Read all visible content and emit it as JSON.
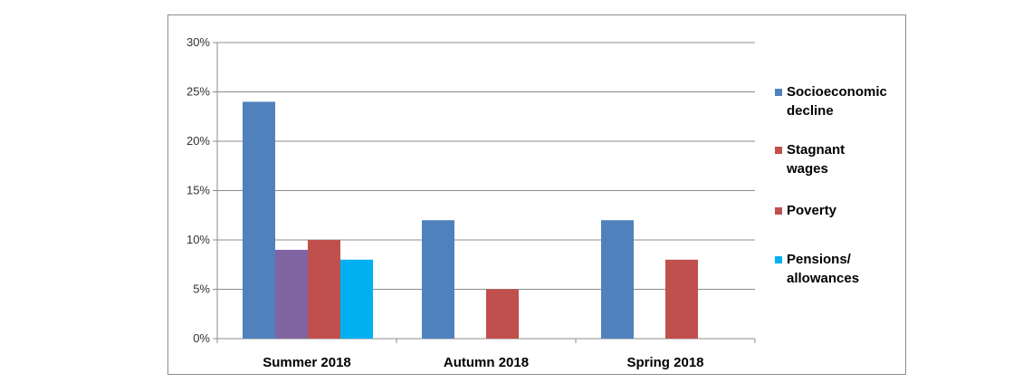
{
  "chart_data": {
    "type": "bar",
    "title": "",
    "xlabel": "",
    "ylabel": "",
    "ylim": [
      0,
      30
    ],
    "y_ticks": [
      "0%",
      "5%",
      "10%",
      "15%",
      "20%",
      "25%",
      "30%"
    ],
    "y_tick_values": [
      0,
      5,
      10,
      15,
      20,
      25,
      30
    ],
    "grid": true,
    "legend_position": "right",
    "categories": [
      "Summer 2018",
      "Autumn 2018",
      "Spring 2018"
    ],
    "bar_colors": {
      "blue": "#4f81bd",
      "purple": "#8064a2",
      "red": "#c0504d",
      "cyan": "#00b0f0"
    },
    "bars": [
      {
        "category": "Summer 2018",
        "color": "#4f81bd",
        "value": 24
      },
      {
        "category": "Summer 2018",
        "color": "#8064a2",
        "value": 9
      },
      {
        "category": "Summer 2018",
        "color": "#c0504d",
        "value": 10
      },
      {
        "category": "Summer 2018",
        "color": "#00b0f0",
        "value": 8
      },
      {
        "category": "Autumn 2018",
        "color": "#4f81bd",
        "value": 12
      },
      {
        "category": "Autumn 2018",
        "color": "#c0504d",
        "value": 5
      },
      {
        "category": "Spring 2018",
        "color": "#4f81bd",
        "value": 12
      },
      {
        "category": "Spring 2018",
        "color": "#c0504d",
        "value": 8
      }
    ],
    "legend": [
      {
        "lines": [
          "Socioeconomic",
          "decline"
        ],
        "color": "#4f81bd"
      },
      {
        "lines": [
          "Stagnant",
          "wages"
        ],
        "color": "#c0504d"
      },
      {
        "lines": [
          "Poverty"
        ],
        "color": "#c0504d"
      },
      {
        "lines": [
          "Pensions/",
          "allowances"
        ],
        "color": "#00b0f0"
      }
    ]
  }
}
